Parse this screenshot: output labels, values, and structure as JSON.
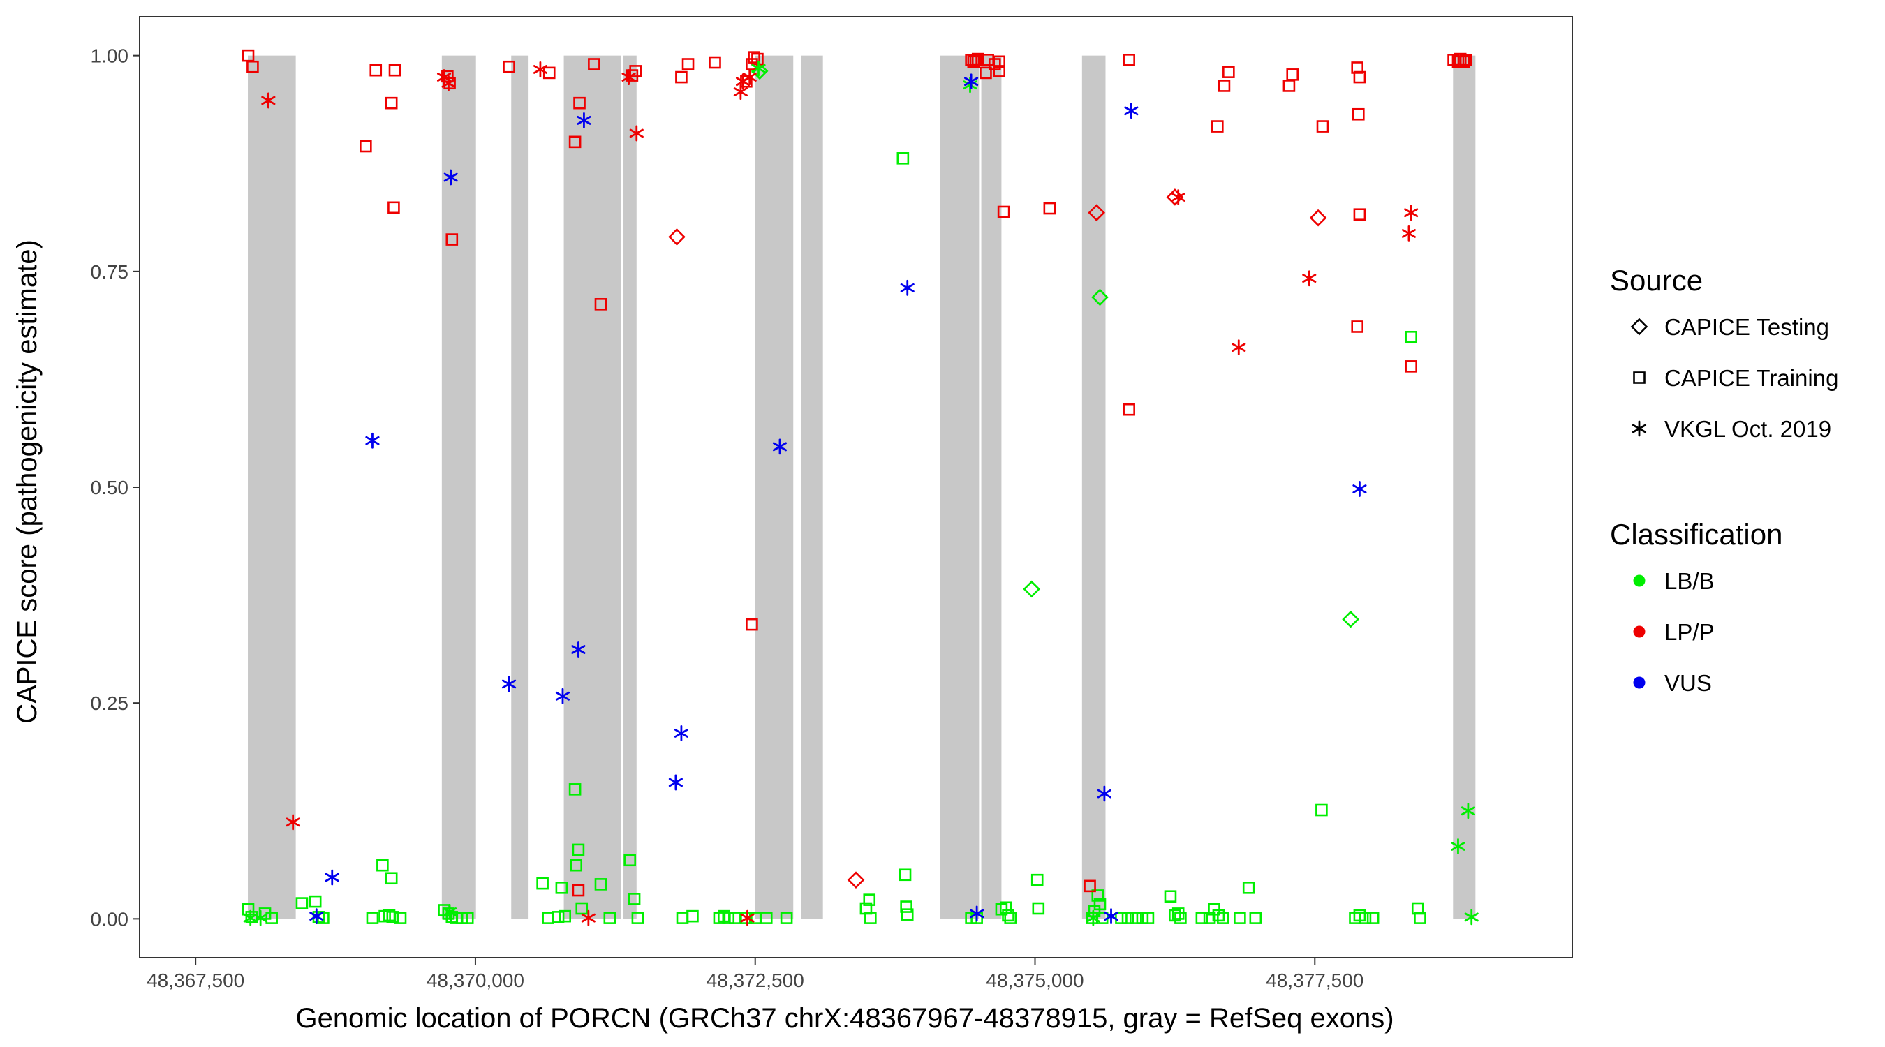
{
  "chart_data": {
    "type": "scatter",
    "xlabel": "Genomic location of PORCN (GRCh37 chrX:48367967-48378915, gray = RefSeq exons)",
    "ylabel": "CAPICE score (pathogenicity estimate)",
    "xlim": [
      48367000,
      48379800
    ],
    "ylim": [
      -0.045,
      1.045
    ],
    "x_ticks": [
      48367500,
      48370000,
      48372500,
      48375000,
      48377500
    ],
    "x_tick_labels": [
      "48,367,500",
      "48,370,000",
      "48,372,500",
      "48,375,000",
      "48,377,500"
    ],
    "y_ticks": [
      0,
      0.25,
      0.5,
      0.75,
      1.0
    ],
    "y_tick_labels": [
      "0.00",
      "0.25",
      "0.50",
      "0.75",
      "1.00"
    ],
    "exons": [
      [
        48367967,
        48368395
      ],
      [
        48369700,
        48370005
      ],
      [
        48370320,
        48370475
      ],
      [
        48370790,
        48371300
      ],
      [
        48371320,
        48371440
      ],
      [
        48372500,
        48372840
      ],
      [
        48372910,
        48373105
      ],
      [
        48374150,
        48374500
      ],
      [
        48374520,
        48374700
      ],
      [
        48375420,
        48375630
      ],
      [
        48378735,
        48378935
      ]
    ],
    "colors": {
      "LB/B": "#00ee00",
      "LP/P": "#ee0000",
      "VUS": "#0000ee"
    },
    "legend": {
      "source_title": "Source",
      "source_items": [
        "CAPICE Testing",
        "CAPICE Training",
        "VKGL Oct. 2019"
      ],
      "class_title": "Classification",
      "class_items": [
        "LB/B",
        "LP/P",
        "VUS"
      ]
    },
    "series": [
      {
        "name": "CAPICE Testing / LB/B",
        "source": "CAPICE Testing",
        "classification": "LB/B",
        "points": [
          [
            48372540,
            0.982
          ],
          [
            48374970,
            0.382
          ],
          [
            48375580,
            0.72
          ],
          [
            48377820,
            0.347
          ]
        ]
      },
      {
        "name": "CAPICE Testing / LP/P",
        "source": "CAPICE Testing",
        "classification": "LP/P",
        "points": [
          [
            48371800,
            0.79
          ],
          [
            48373400,
            0.045
          ],
          [
            48375550,
            0.818
          ],
          [
            48376250,
            0.836
          ],
          [
            48377530,
            0.812
          ]
        ]
      },
      {
        "name": "CAPICE Training / LB/B",
        "source": "CAPICE Training",
        "classification": "LB/B",
        "points": [
          [
            48367970,
            0.011
          ],
          [
            48368000,
            0.002
          ],
          [
            48368120,
            0.006
          ],
          [
            48368180,
            0.001
          ],
          [
            48368450,
            0.018
          ],
          [
            48368570,
            0.02
          ],
          [
            48368600,
            0.002
          ],
          [
            48368640,
            0.001
          ],
          [
            48369080,
            0.001
          ],
          [
            48369170,
            0.062
          ],
          [
            48369190,
            0.003
          ],
          [
            48369230,
            0.004
          ],
          [
            48369250,
            0.047
          ],
          [
            48369260,
            0.002
          ],
          [
            48369330,
            0.001
          ],
          [
            48369720,
            0.01
          ],
          [
            48369760,
            0.006
          ],
          [
            48369790,
            0.002
          ],
          [
            48369830,
            0.001
          ],
          [
            48369880,
            0.001
          ],
          [
            48369930,
            0.001
          ],
          [
            48370600,
            0.041
          ],
          [
            48370650,
            0.001
          ],
          [
            48370740,
            0.002
          ],
          [
            48370770,
            0.036
          ],
          [
            48370800,
            0.003
          ],
          [
            48370890,
            0.15
          ],
          [
            48370900,
            0.062
          ],
          [
            48370920,
            0.08
          ],
          [
            48370950,
            0.012
          ],
          [
            48371120,
            0.04
          ],
          [
            48371200,
            0.001
          ],
          [
            48371380,
            0.068
          ],
          [
            48371420,
            0.023
          ],
          [
            48371450,
            0.001
          ],
          [
            48371850,
            0.001
          ],
          [
            48371940,
            0.003
          ],
          [
            48372180,
            0.001
          ],
          [
            48372220,
            0.003
          ],
          [
            48372260,
            0.001
          ],
          [
            48372320,
            0.001
          ],
          [
            48372420,
            0.001
          ],
          [
            48372500,
            0.001
          ],
          [
            48372600,
            0.001
          ],
          [
            48372780,
            0.001
          ],
          [
            48373490,
            0.012
          ],
          [
            48373520,
            0.022
          ],
          [
            48373530,
            0.001
          ],
          [
            48373820,
            0.881
          ],
          [
            48373840,
            0.051
          ],
          [
            48373850,
            0.014
          ],
          [
            48373860,
            0.005
          ],
          [
            48374430,
            0.001
          ],
          [
            48374480,
            0.001
          ],
          [
            48374700,
            0.011
          ],
          [
            48374740,
            0.013
          ],
          [
            48374760,
            0.004
          ],
          [
            48374780,
            0.001
          ],
          [
            48375020,
            0.045
          ],
          [
            48375030,
            0.012
          ],
          [
            48375510,
            0.001
          ],
          [
            48375530,
            0.009
          ],
          [
            48375560,
            0.027
          ],
          [
            48375580,
            0.017
          ],
          [
            48375600,
            0.001
          ],
          [
            48375770,
            0.001
          ],
          [
            48375830,
            0.001
          ],
          [
            48375900,
            0.001
          ],
          [
            48375960,
            0.001
          ],
          [
            48376010,
            0.001
          ],
          [
            48376210,
            0.026
          ],
          [
            48376250,
            0.004
          ],
          [
            48376280,
            0.006
          ],
          [
            48376300,
            0.001
          ],
          [
            48376490,
            0.001
          ],
          [
            48376560,
            0.001
          ],
          [
            48376600,
            0.011
          ],
          [
            48376640,
            0.004
          ],
          [
            48376680,
            0.001
          ],
          [
            48376830,
            0.001
          ],
          [
            48376910,
            0.036
          ],
          [
            48376970,
            0.001
          ],
          [
            48377560,
            0.126
          ],
          [
            48377860,
            0.001
          ],
          [
            48377900,
            0.004
          ],
          [
            48377950,
            0.001
          ],
          [
            48378020,
            0.001
          ],
          [
            48378360,
            0.674
          ],
          [
            48378420,
            0.012
          ],
          [
            48378440,
            0.001
          ]
        ]
      },
      {
        "name": "CAPICE Training / LP/P",
        "source": "CAPICE Training",
        "classification": "LP/P",
        "points": [
          [
            48367970,
            1.0
          ],
          [
            48368010,
            0.987
          ],
          [
            48369020,
            0.895
          ],
          [
            48369110,
            0.983
          ],
          [
            48369250,
            0.945
          ],
          [
            48369270,
            0.824
          ],
          [
            48369280,
            0.983
          ],
          [
            48369750,
            0.976
          ],
          [
            48369770,
            0.968
          ],
          [
            48369790,
            0.787
          ],
          [
            48370300,
            0.987
          ],
          [
            48370660,
            0.98
          ],
          [
            48370890,
            0.9
          ],
          [
            48370930,
            0.945
          ],
          [
            48370920,
            0.033
          ],
          [
            48371060,
            0.99
          ],
          [
            48371120,
            0.712
          ],
          [
            48371400,
            0.977
          ],
          [
            48371430,
            0.982
          ],
          [
            48371840,
            0.975
          ],
          [
            48371900,
            0.99
          ],
          [
            48372140,
            0.992
          ],
          [
            48372420,
            0.97
          ],
          [
            48372470,
            0.99
          ],
          [
            48372490,
            0.998
          ],
          [
            48372520,
            0.996
          ],
          [
            48372470,
            0.341
          ],
          [
            48374430,
            0.995
          ],
          [
            48374450,
            0.993
          ],
          [
            48374470,
            0.995
          ],
          [
            48374490,
            0.996
          ],
          [
            48374560,
            0.98
          ],
          [
            48374580,
            0.995
          ],
          [
            48374640,
            0.99
          ],
          [
            48374680,
            0.993
          ],
          [
            48374680,
            0.982
          ],
          [
            48374720,
            0.819
          ],
          [
            48375130,
            0.823
          ],
          [
            48375490,
            0.038
          ],
          [
            48375840,
            0.995
          ],
          [
            48375840,
            0.59
          ],
          [
            48376630,
            0.918
          ],
          [
            48376690,
            0.965
          ],
          [
            48376730,
            0.981
          ],
          [
            48377270,
            0.965
          ],
          [
            48377300,
            0.978
          ],
          [
            48377570,
            0.918
          ],
          [
            48377880,
            0.986
          ],
          [
            48377890,
            0.932
          ],
          [
            48377900,
            0.975
          ],
          [
            48377880,
            0.686
          ],
          [
            48377900,
            0.816
          ],
          [
            48378360,
            0.64
          ],
          [
            48378740,
            0.995
          ],
          [
            48378780,
            0.993
          ],
          [
            48378800,
            0.996
          ],
          [
            48378830,
            0.993
          ],
          [
            48378850,
            0.995
          ]
        ]
      },
      {
        "name": "VKGL Oct. 2019 / LB/B",
        "source": "VKGL Oct. 2019",
        "classification": "LB/B",
        "points": [
          [
            48367990,
            0.001
          ],
          [
            48368080,
            0.001
          ],
          [
            48369770,
            0.008
          ],
          [
            48372530,
            0.985
          ],
          [
            48374420,
            0.966
          ],
          [
            48375520,
            0.001
          ],
          [
            48378780,
            0.084
          ],
          [
            48378870,
            0.125
          ],
          [
            48378900,
            0.002
          ]
        ]
      },
      {
        "name": "VKGL Oct. 2019 / LP/P",
        "source": "VKGL Oct. 2019",
        "classification": "LP/P",
        "points": [
          [
            48368150,
            0.948
          ],
          [
            48368370,
            0.112
          ],
          [
            48369720,
            0.975
          ],
          [
            48369760,
            0.968
          ],
          [
            48370580,
            0.984
          ],
          [
            48371010,
            0.001
          ],
          [
            48371370,
            0.975
          ],
          [
            48371440,
            0.91
          ],
          [
            48372370,
            0.958
          ],
          [
            48372390,
            0.97
          ],
          [
            48372450,
            0.975
          ],
          [
            48372430,
            0.001
          ],
          [
            48376280,
            0.836
          ],
          [
            48376820,
            0.662
          ],
          [
            48377450,
            0.742
          ],
          [
            48378340,
            0.794
          ],
          [
            48378360,
            0.818
          ]
        ]
      },
      {
        "name": "VKGL Oct. 2019 / VUS",
        "source": "VKGL Oct. 2019",
        "classification": "VUS",
        "points": [
          [
            48368580,
            0.003
          ],
          [
            48368720,
            0.048
          ],
          [
            48369080,
            0.554
          ],
          [
            48369780,
            0.859
          ],
          [
            48370300,
            0.272
          ],
          [
            48370780,
            0.258
          ],
          [
            48370920,
            0.312
          ],
          [
            48370970,
            0.925
          ],
          [
            48371790,
            0.158
          ],
          [
            48371840,
            0.215
          ],
          [
            48372720,
            0.547
          ],
          [
            48373860,
            0.731
          ],
          [
            48374430,
            0.97
          ],
          [
            48374480,
            0.006
          ],
          [
            48375620,
            0.145
          ],
          [
            48375680,
            0.003
          ],
          [
            48375860,
            0.936
          ],
          [
            48377900,
            0.498
          ]
        ]
      }
    ]
  }
}
